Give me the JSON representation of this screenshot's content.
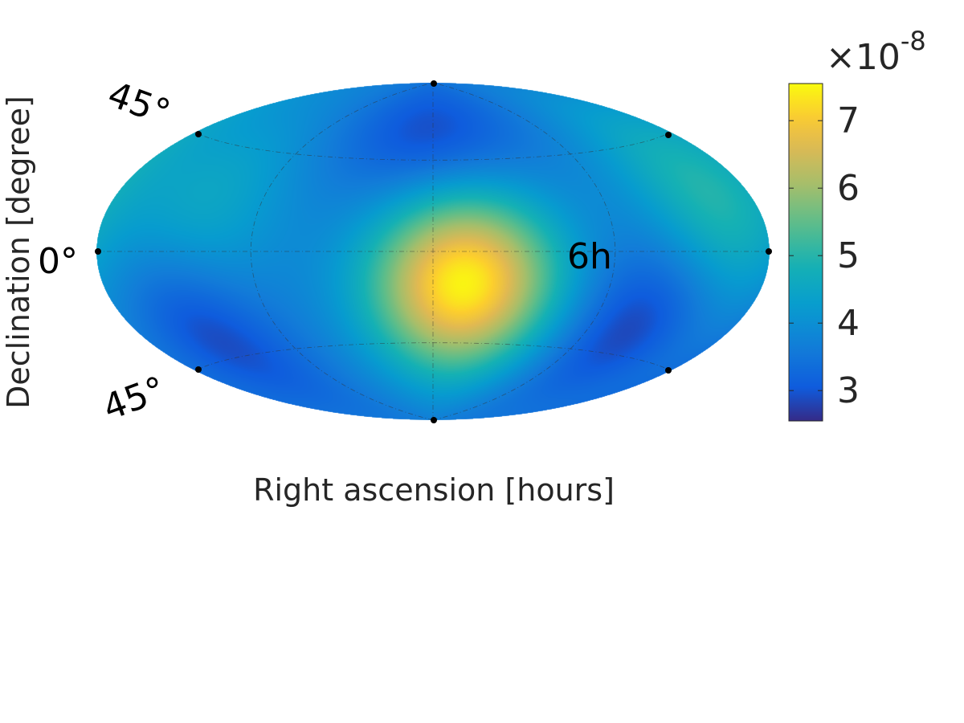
{
  "chart_data": {
    "type": "heatmap",
    "projection": "hammer-aitoff",
    "title": "",
    "xlabel": "Right ascension [hours]",
    "ylabel": "Declination [degree]",
    "lon_labels": [
      "6h"
    ],
    "lat_labels": [
      "45°",
      "0°",
      "45°"
    ],
    "colorbar": {
      "exponent_label": "×10",
      "exponent": "-8",
      "ticks": [
        "3",
        "4",
        "5",
        "6",
        "7"
      ],
      "tick_values": [
        3,
        4,
        5,
        6,
        7
      ],
      "range": [
        2.55,
        7.55
      ],
      "colormap": "parula"
    },
    "field": {
      "units": "x 1e-8",
      "background": 3.6,
      "sources": [
        {
          "lon": 15,
          "lat": -15,
          "peak": 7.5,
          "kind": "maximum"
        },
        {
          "lon": 150,
          "lat": 20,
          "peak": 5.0,
          "kind": "maximum"
        },
        {
          "lon": -120,
          "lat": 15,
          "peak": 4.6,
          "kind": "maximum"
        },
        {
          "lon": 0,
          "lat": 55,
          "peak": 2.7,
          "kind": "minimum"
        },
        {
          "lon": -130,
          "lat": -30,
          "peak": 2.6,
          "kind": "minimum"
        },
        {
          "lon": 115,
          "lat": -30,
          "peak": 2.6,
          "kind": "minimum"
        }
      ]
    },
    "grid": true,
    "legend": "colorbar-right"
  },
  "colors": {
    "text": "#262626",
    "label_text": "#000000",
    "grid": "#333333"
  }
}
